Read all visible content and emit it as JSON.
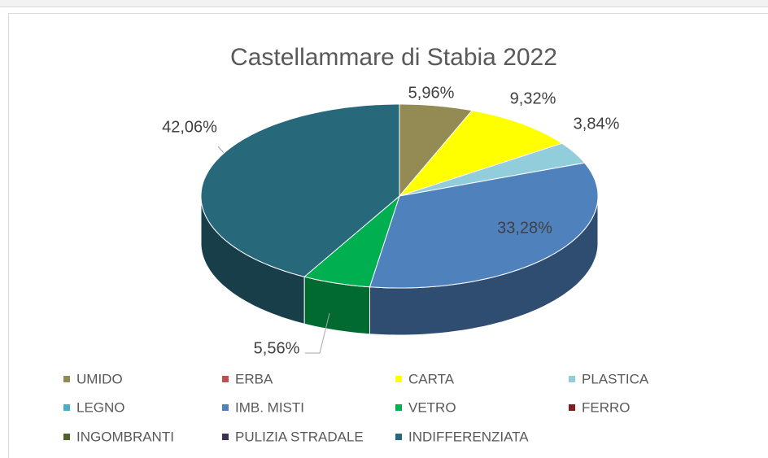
{
  "chart_data": {
    "type": "pie",
    "title": "Castellammare di Stabia 2022",
    "categories": [
      "UMIDO",
      "ERBA",
      "CARTA",
      "PLASTICA",
      "LEGNO",
      "IMB. MISTI",
      "VETRO",
      "FERRO",
      "INGOMBRANTI",
      "PULIZIA STRADALE",
      "INDIFFERENZIATA"
    ],
    "values": [
      5.96,
      0,
      9.32,
      3.84,
      0,
      33.28,
      5.56,
      0,
      0,
      0,
      42.06
    ],
    "value_labels": [
      "5,96%",
      null,
      "9,32%",
      "3,84%",
      null,
      "33,28%",
      "5,56%",
      null,
      null,
      null,
      "42,06%"
    ],
    "colors": [
      "#948a54",
      "#c0504d",
      "#ffff00",
      "#92cddc",
      "#4bacc6",
      "#4f81bd",
      "#00b050",
      "#7f1f1f",
      "#4f6228",
      "#403152",
      "#27687a"
    ],
    "legend": "bottom"
  }
}
